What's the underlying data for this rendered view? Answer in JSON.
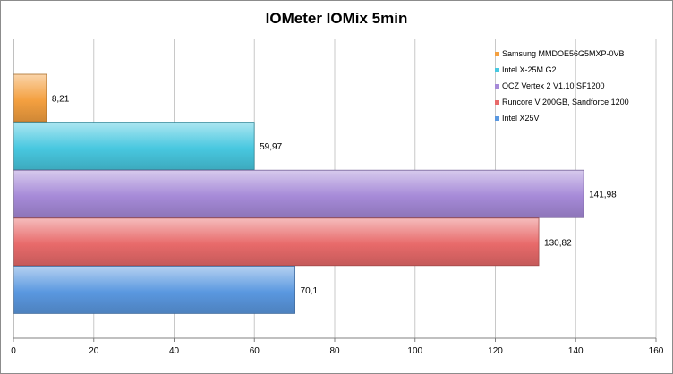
{
  "chart_data": {
    "type": "bar",
    "orientation": "horizontal",
    "title": "IOMeter IOMix 5min",
    "xlim": [
      0,
      160
    ],
    "x_ticks": [
      0,
      20,
      40,
      60,
      80,
      100,
      120,
      140,
      160
    ],
    "grid": true,
    "legend_position": "top-right",
    "series": [
      {
        "name": "Samsung MMDOE56G5MXP-0VB",
        "value": 8.21,
        "label": "8,21",
        "color": "#f4a040"
      },
      {
        "name": "Intel X-25M G2",
        "value": 59.97,
        "label": "59,97",
        "color": "#48c8e0"
      },
      {
        "name": "OCZ Vertex 2 V1.10 SF1200",
        "value": 141.98,
        "label": "141,98",
        "color": "#a68ad8"
      },
      {
        "name": "Runcore V 200GB, Sandforce 1200",
        "value": 130.82,
        "label": "130,82",
        "color": "#e86a6a"
      },
      {
        "name": "Intel X25V",
        "value": 70.1,
        "label": "70,1",
        "color": "#5a98e0"
      }
    ]
  }
}
